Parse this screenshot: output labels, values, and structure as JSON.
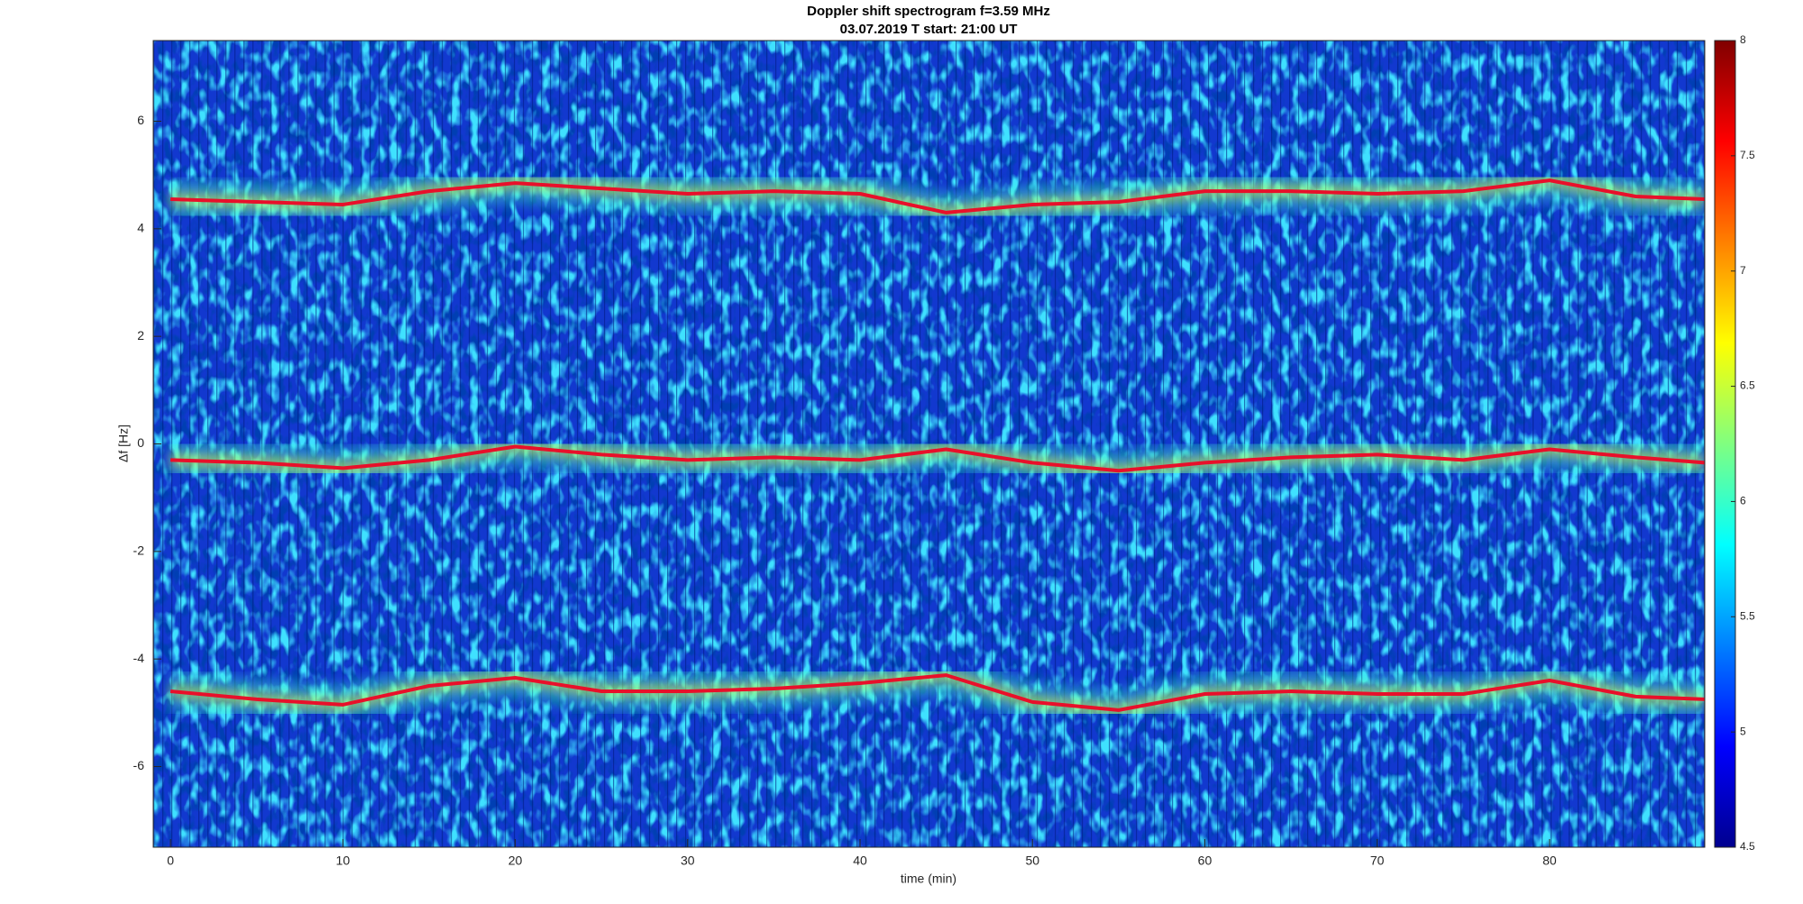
{
  "chart_data": {
    "type": "spectrogram",
    "title": "Doppler shift spectrogram f=3.59 MHz",
    "subtitle": "03.07.2019    T start: 21:00 UT",
    "x_label": "time (min)",
    "y_label": "Δf [Hz]",
    "x": [
      0,
      5,
      10,
      15,
      20,
      25,
      30,
      35,
      40,
      45,
      50,
      55,
      60,
      65,
      70,
      75,
      80,
      85,
      89
    ],
    "series": [
      {
        "color": "#e8102a",
        "values": [
          4.55,
          4.5,
          4.45,
          4.7,
          4.85,
          4.75,
          4.65,
          4.7,
          4.65,
          4.3,
          4.45,
          4.5,
          4.7,
          4.7,
          4.65,
          4.7,
          4.9,
          4.6,
          4.55
        ]
      },
      {
        "color": "#e8102a",
        "values": [
          -0.3,
          -0.35,
          -0.45,
          -0.3,
          -0.05,
          -0.2,
          -0.3,
          -0.25,
          -0.3,
          -0.1,
          -0.35,
          -0.5,
          -0.35,
          -0.25,
          -0.2,
          -0.3,
          -0.1,
          -0.25,
          -0.35
        ]
      },
      {
        "color": "#e8102a",
        "values": [
          -4.6,
          -4.75,
          -4.85,
          -4.5,
          -4.35,
          -4.6,
          -4.6,
          -4.55,
          -4.45,
          -4.3,
          -4.8,
          -4.95,
          -4.65,
          -4.6,
          -4.65,
          -4.65,
          -4.4,
          -4.7,
          -4.75
        ]
      }
    ],
    "xlim": [
      -1,
      89
    ],
    "ylim": [
      -7.5,
      7.5
    ],
    "xticks": [
      0,
      10,
      20,
      30,
      40,
      50,
      60,
      70,
      80
    ],
    "yticks": [
      -6,
      -4,
      -2,
      0,
      2,
      4,
      6
    ],
    "grid": false,
    "colorbar": {
      "colormap": "jet",
      "lim": [
        4.5,
        8
      ],
      "ticks": [
        4.5,
        5,
        5.5,
        6,
        6.5,
        7,
        7.5,
        8
      ]
    }
  }
}
